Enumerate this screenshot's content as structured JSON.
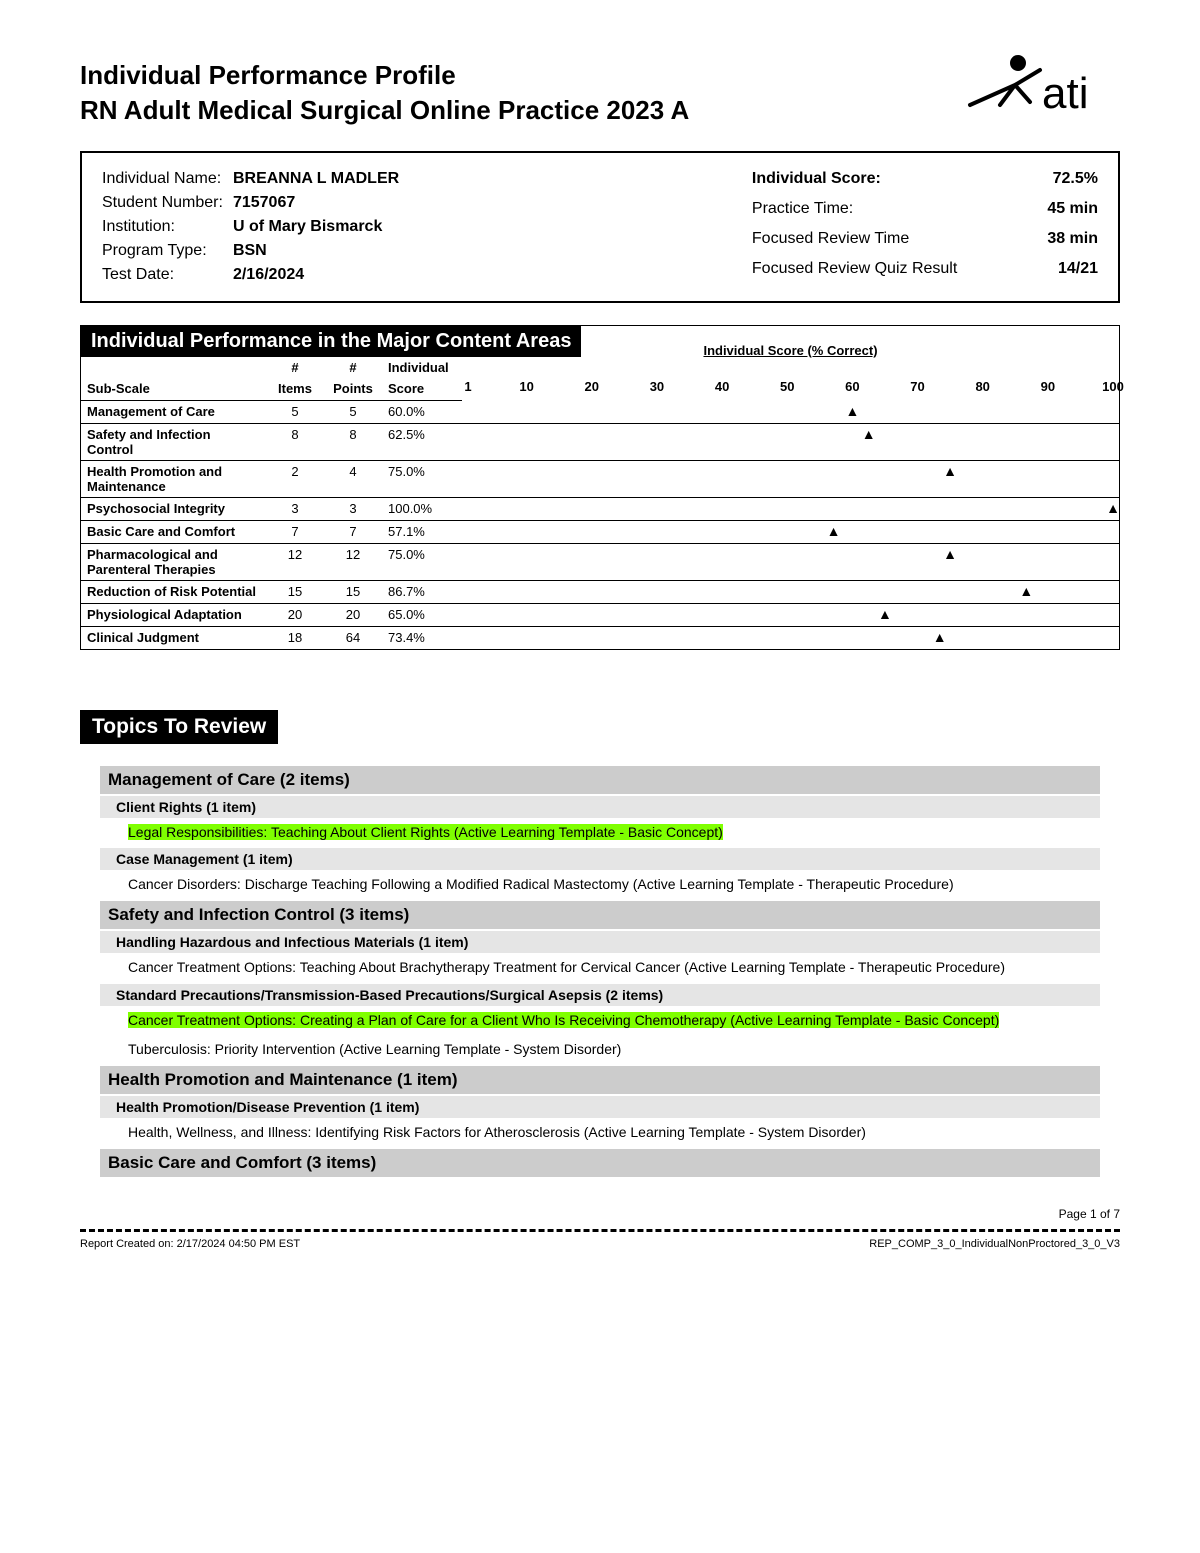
{
  "header": {
    "title1": "Individual Performance Profile",
    "title2": "RN Adult Medical Surgical Online Practice 2023 A"
  },
  "info_left": [
    {
      "label": "Individual Name:",
      "value": "BREANNA L MADLER",
      "bold": true
    },
    {
      "label": "Student Number:",
      "value": "7157067",
      "bold": true
    },
    {
      "label": "Institution:",
      "value": "U of Mary Bismarck",
      "bold": true
    },
    {
      "label": "Program Type:",
      "value": "BSN",
      "bold": true
    },
    {
      "label": "Test Date:",
      "value": "2/16/2024",
      "bold": true
    }
  ],
  "info_right": [
    {
      "label": "Individual Score:",
      "value": "72.5%",
      "label_bold": true
    },
    {
      "label": "Practice Time:",
      "value": "45 min"
    },
    {
      "label": "Focused Review Time",
      "value": "38 min"
    },
    {
      "label": "Focused Review Quiz Result",
      "value": "14/21"
    }
  ],
  "perf": {
    "title": "Individual Performance in the Major Content Areas",
    "headers": {
      "h1": "#",
      "h2": "#",
      "h3": "Individual",
      "sub": "Sub-Scale",
      "items": "Items",
      "points": "Points",
      "score": "Score",
      "axis_title": "Individual Score (% Correct)"
    },
    "ticks": [
      1,
      10,
      20,
      30,
      40,
      50,
      60,
      70,
      80,
      90,
      100
    ],
    "rows": [
      {
        "name": "Management of Care",
        "items": 5,
        "points": 5,
        "score": "60.0%",
        "pct": 60.0
      },
      {
        "name": "Safety and Infection Control",
        "items": 8,
        "points": 8,
        "score": "62.5%",
        "pct": 62.5
      },
      {
        "name": "Health Promotion and Maintenance",
        "items": 2,
        "points": 4,
        "score": "75.0%",
        "pct": 75.0
      },
      {
        "name": "Psychosocial Integrity",
        "items": 3,
        "points": 3,
        "score": "100.0%",
        "pct": 100.0
      },
      {
        "name": "Basic Care and Comfort",
        "items": 7,
        "points": 7,
        "score": "57.1%",
        "pct": 57.1
      },
      {
        "name": "Pharmacological and Parenteral Therapies",
        "items": 12,
        "points": 12,
        "score": "75.0%",
        "pct": 75.0
      },
      {
        "name": "Reduction of Risk Potential",
        "items": 15,
        "points": 15,
        "score": "86.7%",
        "pct": 86.7
      },
      {
        "name": "Physiological Adaptation",
        "items": 20,
        "points": 20,
        "score": "65.0%",
        "pct": 65.0
      },
      {
        "name": "Clinical Judgment",
        "items": 18,
        "points": 64,
        "score": "73.4%",
        "pct": 73.4
      }
    ]
  },
  "topics": {
    "title": "Topics To Review",
    "categories": [
      {
        "name": "Management of Care (2 items)",
        "subcats": [
          {
            "name": "Client Rights (1 item)",
            "items": [
              {
                "text": "Legal Responsibilities: Teaching About Client Rights (Active Learning Template - Basic Concept)",
                "hl": true
              }
            ]
          },
          {
            "name": "Case Management (1 item)",
            "items": [
              {
                "text": "Cancer Disorders: Discharge Teaching Following a Modified Radical Mastectomy (Active Learning Template - Therapeutic Procedure)",
                "hl": false
              }
            ]
          }
        ]
      },
      {
        "name": "Safety and Infection Control (3 items)",
        "subcats": [
          {
            "name": "Handling Hazardous and Infectious Materials (1 item)",
            "items": [
              {
                "text": "Cancer Treatment Options: Teaching About Brachytherapy Treatment for Cervical Cancer (Active Learning Template - Therapeutic Procedure)",
                "hl": false
              }
            ]
          },
          {
            "name": "Standard Precautions/Transmission-Based Precautions/Surgical Asepsis (2 items)",
            "items": [
              {
                "text": "Cancer Treatment Options: Creating a Plan of Care for a Client Who Is Receiving Chemotherapy (Active Learning Template - Basic Concept)",
                "hl": true
              },
              {
                "text": "Tuberculosis: Priority Intervention (Active Learning Template - System Disorder)",
                "hl": false
              }
            ]
          }
        ]
      },
      {
        "name": "Health Promotion and Maintenance (1 item)",
        "subcats": [
          {
            "name": "Health Promotion/Disease Prevention (1 item)",
            "items": [
              {
                "text": "Health, Wellness, and Illness: Identifying Risk Factors for Atherosclerosis (Active Learning Template - System Disorder)",
                "hl": false
              }
            ]
          }
        ]
      },
      {
        "name": "Basic Care and Comfort (3 items)",
        "subcats": []
      }
    ]
  },
  "footer": {
    "page": "Page 1 of 7",
    "created": "Report Created on: 2/17/2024 04:50 PM EST",
    "code": "REP_COMP_3_0_IndividualNonProctored_3_0_V3"
  },
  "logo_color": "#000000"
}
